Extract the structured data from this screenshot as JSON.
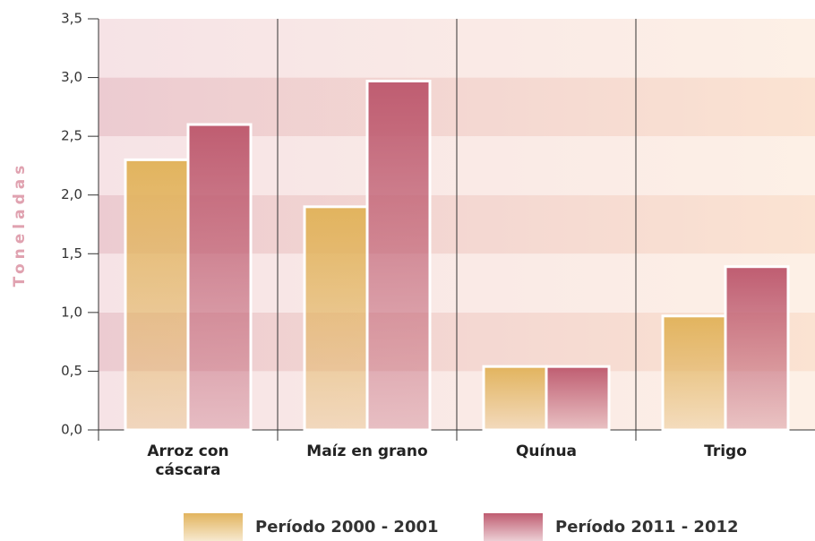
{
  "chart_data": {
    "type": "bar",
    "y_label": "Toneladas",
    "categories": [
      "Arroz con cáscara",
      "Maíz en grano",
      "Quínua",
      "Trigo"
    ],
    "series": [
      {
        "name": "Período 2000 - 2001",
        "color": "#e2b45e",
        "values": [
          2.3,
          1.9,
          0.54,
          0.97
        ]
      },
      {
        "name": "Período 2011 - 2012",
        "color": "#bf5d71",
        "values": [
          2.6,
          2.97,
          0.54,
          1.39
        ]
      }
    ],
    "ylim": [
      0,
      3.5
    ],
    "yticks": [
      {
        "value": 0,
        "label": "0,0"
      },
      {
        "value": 0.5,
        "label": "0,5"
      },
      {
        "value": 1,
        "label": "1,0"
      },
      {
        "value": 1.5,
        "label": "1,5"
      },
      {
        "value": 2,
        "label": "2,0"
      },
      {
        "value": 2.5,
        "label": "2,5"
      },
      {
        "value": 3,
        "label": "3,0"
      },
      {
        "value": 3.5,
        "label": "3,5"
      }
    ],
    "grid": true
  }
}
